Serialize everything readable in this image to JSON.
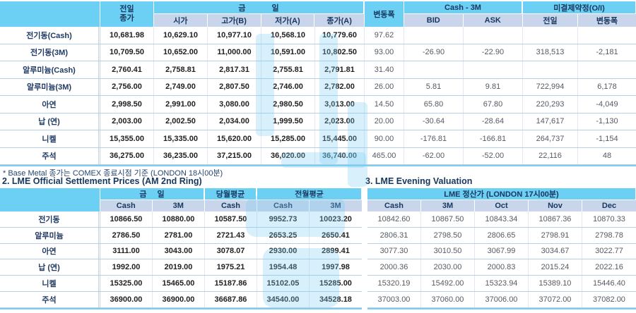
{
  "colors": {
    "header_blue": "#6ccff4",
    "subheader_blue_gray": "#c9d5ea",
    "header_text_navy": "#17375e",
    "row_border": "#b7cfe6",
    "bold_value_text": "#1f1f1f",
    "secondary_value_text": "#555b63",
    "watermark_blue": "#79ccf2"
  },
  "section1": {
    "header": {
      "prev_line1": "전일",
      "prev_line2": "종가",
      "today": "금 일",
      "open": "시가",
      "high": "고가(B)",
      "low": "저가(A)",
      "close": "종가(A)",
      "change": "변동폭",
      "cash_3m": "Cash - 3M",
      "bid": "BID",
      "ask": "ASK",
      "open_interest": "미결제약정(O/I)",
      "oi_prev": "전일",
      "oi_change": "변동폭"
    },
    "rows": [
      [
        "전기동(Cash)",
        "10,681.98",
        "10,629.10",
        "10,977.10",
        "10,568.10",
        "10,779.60",
        "97.62",
        "",
        "",
        "",
        ""
      ],
      [
        "전기동(3M)",
        "10,709.50",
        "10,652.00",
        "11,000.00",
        "10,591.00",
        "10,802.50",
        "93.00",
        "-26.90",
        "-22.90",
        "318,513",
        "-2,181"
      ],
      [
        "알루미늄(Cash)",
        "2,760.41",
        "2,758.81",
        "2,817.31",
        "2,755.81",
        "2,791.81",
        "31.40",
        "",
        "",
        "",
        ""
      ],
      [
        "알루미늄(3M)",
        "2,756.00",
        "2,749.00",
        "2,807.50",
        "2,746.00",
        "2,782.00",
        "26.00",
        "5.81",
        "9.81",
        "722,994",
        "6,178"
      ],
      [
        "아연",
        "2,998.50",
        "2,991.00",
        "3,080.00",
        "2,980.50",
        "3,013.00",
        "14.50",
        "65.80",
        "67.80",
        "220,293",
        "-4,049"
      ],
      [
        "납 (연)",
        "2,003.00",
        "2,002.50",
        "2,034.00",
        "1,999.50",
        "2,023.00",
        "20.00",
        "-30.64",
        "-28.64",
        "147,617",
        "-1,130"
      ],
      [
        "니켈",
        "15,355.00",
        "15,335.00",
        "15,620.00",
        "15,285.00",
        "15,445.00",
        "90.00",
        "-176.81",
        "-166.81",
        "264,737",
        "-1,154"
      ],
      [
        "주석",
        "36,275.00",
        "36,235.00",
        "37,215.00",
        "36,020.00",
        "36,740.00",
        "465.00",
        "-62.00",
        "-52.00",
        "22,116",
        "48"
      ]
    ],
    "footnote": "* Base Metal 종가는 COMEX 종료시점 기준 (LONDON 18시00분)"
  },
  "section2": {
    "title": "2. LME Official Settlement Prices (AM 2nd Ring)",
    "header": {
      "today": "금 일",
      "month_avg": "당월평균",
      "prev_month_avg": "전월평균",
      "cash": "Cash",
      "m3": "3M"
    },
    "rows": [
      [
        "전기동",
        "10866.50",
        "10880.00",
        "10587.50",
        "9952.73",
        "10023.20"
      ],
      [
        "알루미늄",
        "2786.50",
        "2781.00",
        "2721.43",
        "2653.25",
        "2650.41"
      ],
      [
        "아연",
        "3111.00",
        "3043.00",
        "3078.07",
        "2930.00",
        "2899.41"
      ],
      [
        "납 (연)",
        "1992.00",
        "2019.00",
        "1975.21",
        "1954.48",
        "1997.98"
      ],
      [
        "니켈",
        "15325.00",
        "15465.00",
        "15187.86",
        "15102.05",
        "15285.00"
      ],
      [
        "주석",
        "36900.00",
        "36900.00",
        "36687.86",
        "34540.00",
        "34528.18"
      ]
    ]
  },
  "section3": {
    "title": "3. LME Evening Valuation",
    "header": {
      "title": "LME 정산가 (LONDON 17시00분)",
      "cols": [
        "Cash",
        "3M",
        "Oct",
        "Nov",
        "Dec"
      ]
    },
    "rows": [
      [
        "10842.60",
        "10867.50",
        "10843.34",
        "10867.36",
        "10870.33"
      ],
      [
        "2806.31",
        "2798.50",
        "2806.65",
        "2798.91",
        "2798.78"
      ],
      [
        "3077.30",
        "3010.50",
        "3067.99",
        "3034.67",
        "3022.77"
      ],
      [
        "2000.36",
        "2030.00",
        "2000.83",
        "2015.24",
        "2022.16"
      ],
      [
        "15320.19",
        "15492.00",
        "15323.94",
        "15389.10",
        "15446.40"
      ],
      [
        "37003.00",
        "37060.00",
        "37006.00",
        "37072.00",
        "37082.00"
      ]
    ]
  }
}
